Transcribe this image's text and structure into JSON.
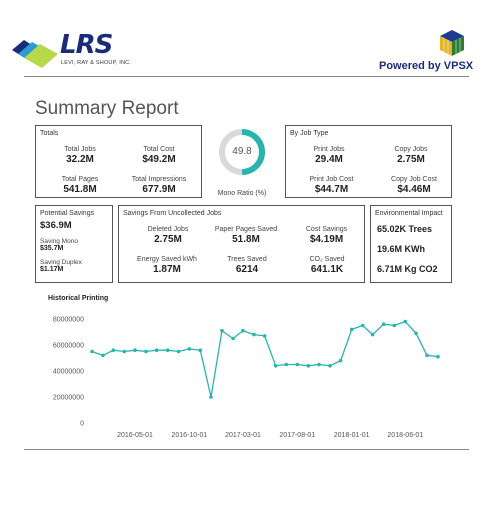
{
  "header": {
    "logo_text": "LRS",
    "logo_sub": "LEVI, RAY & SHOUP, INC.",
    "powered_by": "Powered by VPSX"
  },
  "page_title": "Summary Report",
  "totals": {
    "title": "Totals",
    "total_jobs_label": "Total Jobs",
    "total_jobs": "32.2M",
    "total_cost_label": "Total Cost",
    "total_cost": "$49.2M",
    "total_pages_label": "Total Pages",
    "total_pages": "541.8M",
    "total_impressions_label": "Total Impressions",
    "total_impressions": "677.9M"
  },
  "mono_ratio": {
    "value": "49.8",
    "label": "Mono Ratio (%)",
    "fraction": 0.498
  },
  "by_job_type": {
    "title": "By Job Type",
    "print_jobs_label": "Print Jobs",
    "print_jobs": "29.4M",
    "copy_jobs_label": "Copy Jobs",
    "copy_jobs": "2.75M",
    "print_job_cost_label": "Print Job Cost",
    "print_job_cost": "$44.7M",
    "copy_job_cost_label": "Copy Job Cost",
    "copy_job_cost": "$4.46M"
  },
  "potential_savings": {
    "title": "Potential Savings",
    "value": "$36.9M",
    "saving_mono_label": "Saving Mono",
    "saving_mono": "$35.7M",
    "saving_duplex_label": "Saving Duplex",
    "saving_duplex": "$1.17M"
  },
  "uncollected": {
    "title": "Savings From Uncollected Jobs",
    "deleted_jobs_label": "Deleted Jobs",
    "deleted_jobs": "2.75M",
    "paper_pages_label": "Paper Pages Saved",
    "paper_pages": "51.8M",
    "cost_savings_label": "Cost Savings",
    "cost_savings": "$4.19M",
    "energy_label": "Energy Saved kWh",
    "energy": "1.87M",
    "trees_label": "Trees Saved",
    "trees": "6214",
    "co2_label": "CO₂ Saved",
    "co2": "641.1K"
  },
  "environmental": {
    "title": "Environmental Impact",
    "trees": "65.02K Trees",
    "kwh": "19.6M KWh",
    "co2": "6.71M Kg CO2"
  },
  "colors": {
    "accent": "#2ab4b0",
    "donut_rest": "#d9d9d9",
    "logo_blue": "#1a2b7a"
  },
  "chart_data": {
    "type": "line",
    "title": "Historical Printing",
    "xlabel": "",
    "ylabel": "",
    "ylim": [
      0,
      80000000
    ],
    "ytick_labels": [
      "0",
      "20000000",
      "40000000",
      "60000000",
      "80000000"
    ],
    "ytick_values": [
      0,
      20000000,
      40000000,
      60000000,
      80000000
    ],
    "xtick_labels": [
      "2016-05-01",
      "2016-10-01",
      "2017-03-01",
      "2017-08-01",
      "2018-01-01",
      "2018-06-01"
    ],
    "grid": false,
    "series": [
      {
        "name": "",
        "x": [
          "2016-01-01",
          "2016-02-01",
          "2016-03-01",
          "2016-04-01",
          "2016-05-01",
          "2016-06-01",
          "2016-07-01",
          "2016-08-01",
          "2016-09-01",
          "2016-10-01",
          "2016-11-01",
          "2016-12-01",
          "2017-01-01",
          "2017-02-01",
          "2017-03-01",
          "2017-04-01",
          "2017-05-01",
          "2017-06-01",
          "2017-07-01",
          "2017-08-01",
          "2017-09-01",
          "2017-10-01",
          "2017-11-01",
          "2017-12-01",
          "2018-01-01",
          "2018-02-01",
          "2018-03-01",
          "2018-04-01",
          "2018-05-01",
          "2018-06-01",
          "2018-07-01",
          "2018-08-01",
          "2018-09-01"
        ],
        "values": [
          55000000,
          52000000,
          56000000,
          55000000,
          56000000,
          55000000,
          56000000,
          56000000,
          55000000,
          57000000,
          56000000,
          20000000,
          71000000,
          65000000,
          71000000,
          68000000,
          67000000,
          44000000,
          45000000,
          45000000,
          44000000,
          45000000,
          44000000,
          48000000,
          72000000,
          75000000,
          68000000,
          76000000,
          75000000,
          78000000,
          69000000,
          52000000,
          51000000
        ]
      }
    ]
  }
}
